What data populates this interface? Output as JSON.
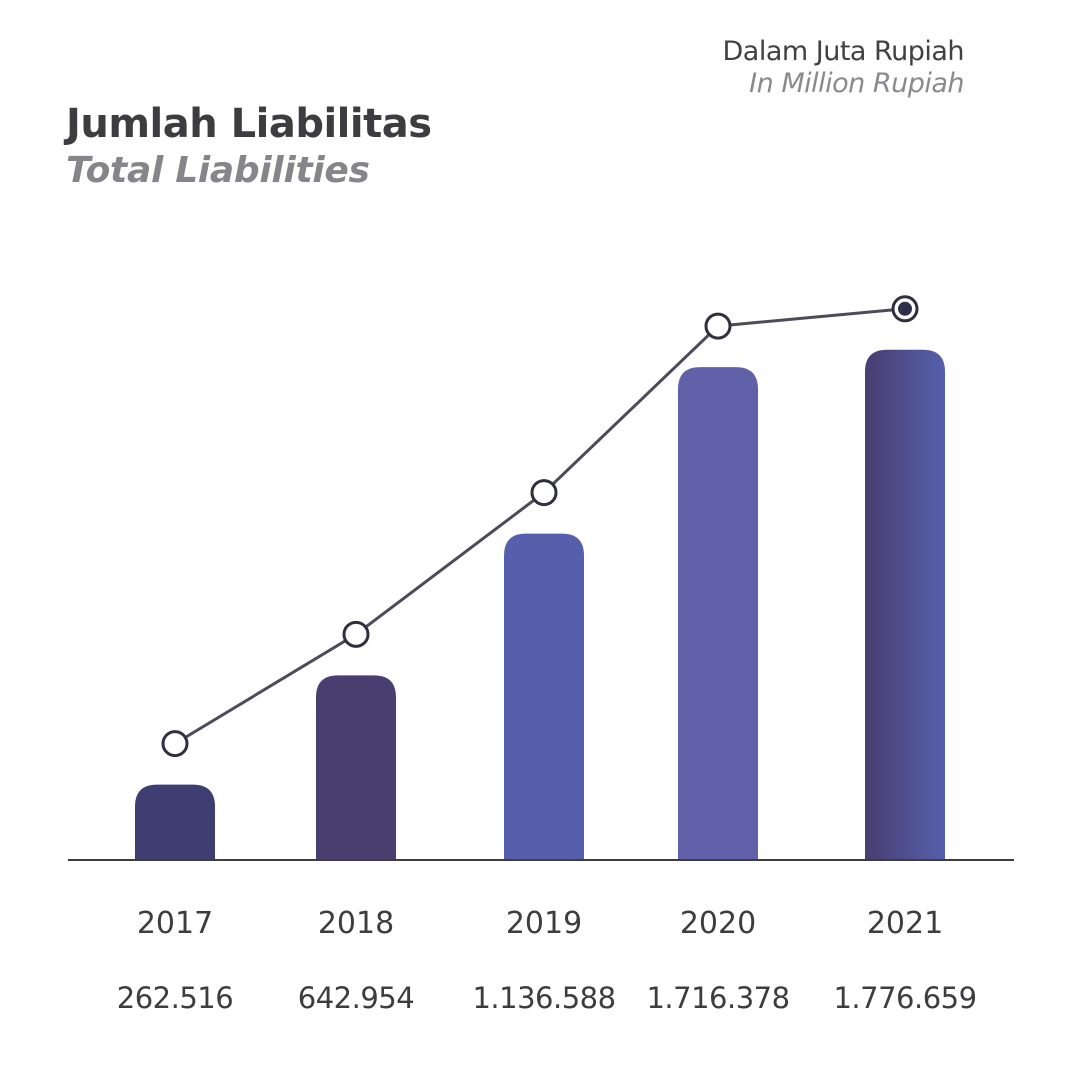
{
  "header": {
    "unit_id": "Dalam Juta Rupiah",
    "unit_en": "In Million Rupiah",
    "title_id": "Jumlah Liabilitas",
    "title_en": "Total Liabilities"
  },
  "chart_data": {
    "type": "bar",
    "categories": [
      "2017",
      "2018",
      "2019",
      "2020",
      "2021"
    ],
    "values": [
      262516,
      642954,
      1136588,
      1716378,
      1776659
    ],
    "value_labels": [
      "262.516",
      "642.954",
      "1.136.588",
      "1.716.378",
      "1.776.659"
    ],
    "overlay": "line",
    "title": "Jumlah Liabilitas",
    "subtitle": "Total Liabilities",
    "unit": "Dalam Juta Rupiah / In Million Rupiah",
    "ylim": [
      0,
      1950000
    ],
    "grid": false,
    "legend": "none",
    "colors": [
      "#3f3e72",
      "#483e70",
      "#565fac",
      "#6061a8",
      "#4f4f98"
    ],
    "line_color": "#4c4c58"
  }
}
